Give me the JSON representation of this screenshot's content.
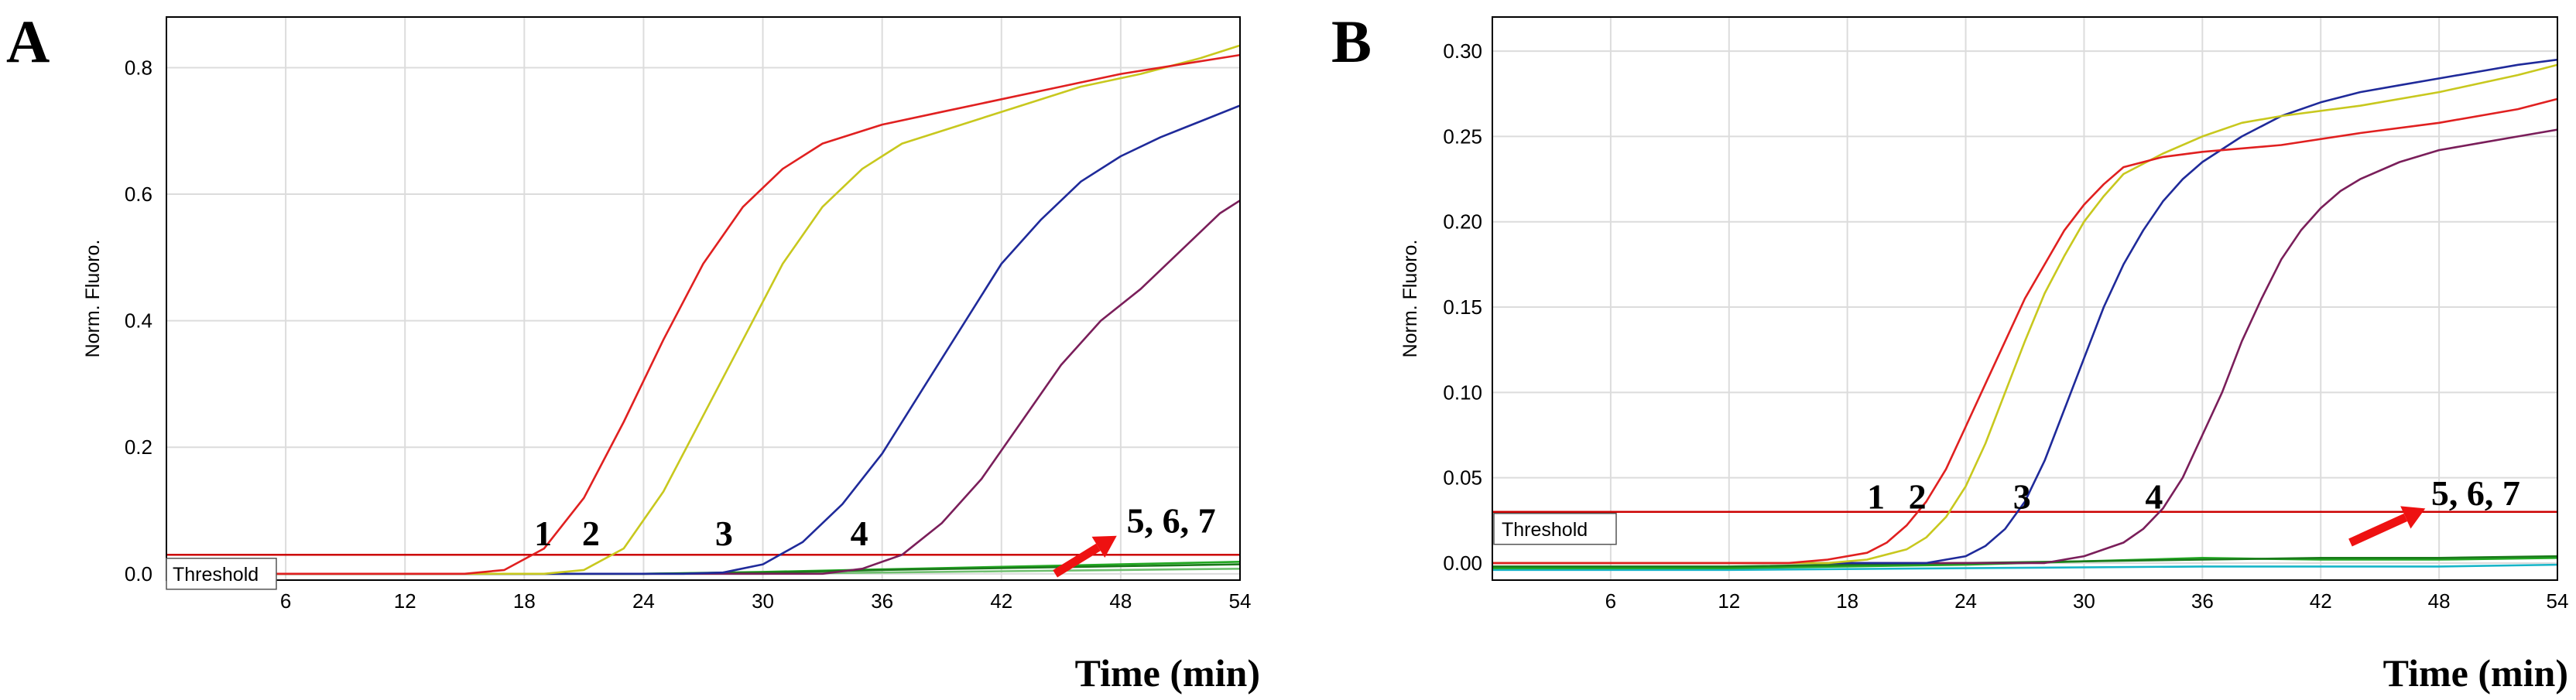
{
  "chart_data": [
    {
      "panel": "A",
      "type": "line",
      "xlabel": "Time (min)",
      "ylabel": "Norm. Fluoro.",
      "xlim": [
        0,
        54
      ],
      "ylim": [
        -0.01,
        0.88
      ],
      "xticks": [
        6,
        12,
        18,
        24,
        30,
        36,
        42,
        48,
        54
      ],
      "xtick_labels": [
        "6",
        "12",
        "18",
        "24",
        "30",
        "36",
        "42",
        "48",
        "54"
      ],
      "yticks": [
        0.0,
        0.2,
        0.4,
        0.6,
        0.8
      ],
      "ytick_labels": [
        "0.0",
        "0.2",
        "0.4",
        "0.6",
        "0.8"
      ],
      "threshold": {
        "value": 0.03,
        "label": "Threshold",
        "color": "#cc0000"
      },
      "series": [
        {
          "name": "1",
          "color": "#e02020",
          "x": [
            0,
            15,
            17,
            19,
            21,
            23,
            25,
            27,
            29,
            31,
            33,
            36,
            39,
            42,
            45,
            48,
            51,
            54
          ],
          "y": [
            0,
            0,
            0.006,
            0.04,
            0.12,
            0.24,
            0.37,
            0.49,
            0.58,
            0.64,
            0.68,
            0.71,
            0.73,
            0.75,
            0.77,
            0.79,
            0.805,
            0.82
          ]
        },
        {
          "name": "2",
          "color": "#c8c81e",
          "x": [
            0,
            19,
            21,
            23,
            25,
            27,
            29,
            31,
            33,
            35,
            37,
            40,
            43,
            46,
            49,
            52,
            54
          ],
          "y": [
            0,
            0,
            0.006,
            0.04,
            0.13,
            0.25,
            0.37,
            0.49,
            0.58,
            0.64,
            0.68,
            0.71,
            0.74,
            0.77,
            0.79,
            0.815,
            0.835
          ]
        },
        {
          "name": "3",
          "color": "#1f2a9a",
          "x": [
            0,
            26,
            28,
            30,
            32,
            34,
            36,
            38,
            40,
            42,
            44,
            46,
            48,
            50,
            52,
            54
          ],
          "y": [
            0,
            0,
            0.002,
            0.015,
            0.05,
            0.11,
            0.19,
            0.29,
            0.39,
            0.49,
            0.56,
            0.62,
            0.66,
            0.69,
            0.715,
            0.74
          ]
        },
        {
          "name": "4",
          "color": "#7a1e5a",
          "x": [
            0,
            33,
            35,
            37,
            39,
            41,
            43,
            45,
            47,
            49,
            51,
            53,
            54
          ],
          "y": [
            0,
            0,
            0.008,
            0.03,
            0.08,
            0.15,
            0.24,
            0.33,
            0.4,
            0.45,
            0.51,
            0.57,
            0.59
          ]
        },
        {
          "name": "5",
          "color": "#1a7a1a",
          "x": [
            0,
            24,
            30,
            36,
            42,
            48,
            54
          ],
          "y": [
            0,
            0,
            0.002,
            0.006,
            0.009,
            0.012,
            0.015
          ]
        },
        {
          "name": "6",
          "color": "#23a823",
          "x": [
            0,
            24,
            30,
            36,
            42,
            48,
            54
          ],
          "y": [
            0,
            0,
            0.003,
            0.007,
            0.011,
            0.015,
            0.019
          ]
        },
        {
          "name": "7",
          "color": "#6fbf6f",
          "x": [
            0,
            30,
            36,
            42,
            48,
            54
          ],
          "y": [
            0,
            0,
            0.002,
            0.004,
            0.006,
            0.008
          ]
        }
      ],
      "annotations": [
        {
          "text": "1",
          "x": 18.5,
          "y": 0.045
        },
        {
          "text": "2",
          "x": 20.9,
          "y": 0.045
        },
        {
          "text": "3",
          "x": 27.6,
          "y": 0.045
        },
        {
          "text": "4",
          "x": 34.4,
          "y": 0.045
        },
        {
          "text": "5, 6, 7",
          "x": 48.3,
          "y": 0.065,
          "arrow_from": [
            44.7,
            0.0
          ],
          "arrow_to": [
            47.8,
            0.06
          ],
          "arrow_color": "#ee1111"
        }
      ]
    },
    {
      "panel": "B",
      "type": "line",
      "xlabel": "Time (min)",
      "ylabel": "Norm. Fluoro.",
      "xlim": [
        0,
        54
      ],
      "ylim": [
        -0.01,
        0.32
      ],
      "xticks": [
        6,
        12,
        18,
        24,
        30,
        36,
        42,
        48,
        54
      ],
      "xtick_labels": [
        "6",
        "12",
        "18",
        "24",
        "30",
        "36",
        "42",
        "48",
        "54"
      ],
      "yticks": [
        0.0,
        0.05,
        0.1,
        0.15,
        0.2,
        0.25,
        0.3
      ],
      "ytick_labels": [
        "0.00",
        "0.05",
        "0.10",
        "0.15",
        "0.20",
        "0.25",
        "0.30"
      ],
      "threshold": {
        "value": 0.03,
        "label": "Threshold",
        "color": "#cc0000"
      },
      "series": [
        {
          "name": "1",
          "color": "#e02020",
          "x": [
            0,
            15,
            17,
            19,
            20,
            21,
            22,
            23,
            24,
            25,
            26,
            27,
            28,
            29,
            30,
            31,
            32,
            34,
            36,
            40,
            44,
            48,
            52,
            54
          ],
          "y": [
            0,
            0,
            0.002,
            0.006,
            0.012,
            0.022,
            0.036,
            0.055,
            0.08,
            0.105,
            0.13,
            0.155,
            0.175,
            0.195,
            0.21,
            0.222,
            0.232,
            0.238,
            0.241,
            0.245,
            0.252,
            0.258,
            0.266,
            0.272
          ]
        },
        {
          "name": "2",
          "color": "#c8c81e",
          "x": [
            0,
            17,
            19,
            21,
            22,
            23,
            24,
            25,
            26,
            27,
            28,
            29,
            30,
            31,
            32,
            34,
            36,
            38,
            40,
            44,
            48,
            52,
            54
          ],
          "y": [
            0,
            0,
            0.002,
            0.008,
            0.015,
            0.027,
            0.045,
            0.07,
            0.1,
            0.13,
            0.158,
            0.18,
            0.2,
            0.215,
            0.228,
            0.24,
            0.25,
            0.258,
            0.262,
            0.268,
            0.276,
            0.286,
            0.292
          ]
        },
        {
          "name": "3",
          "color": "#1f2a9a",
          "x": [
            0,
            22,
            24,
            25,
            26,
            27,
            28,
            29,
            30,
            31,
            32,
            33,
            34,
            35,
            36,
            38,
            40,
            42,
            44,
            46,
            48,
            50,
            52,
            54
          ],
          "y": [
            0,
            0,
            0.004,
            0.01,
            0.02,
            0.036,
            0.06,
            0.09,
            0.12,
            0.15,
            0.175,
            0.195,
            0.212,
            0.225,
            0.235,
            0.25,
            0.262,
            0.27,
            0.276,
            0.28,
            0.284,
            0.288,
            0.292,
            0.295
          ]
        },
        {
          "name": "4",
          "color": "#7a1e5a",
          "x": [
            0,
            28,
            30,
            32,
            33,
            34,
            35,
            36,
            37,
            38,
            39,
            40,
            41,
            42,
            43,
            44,
            46,
            48,
            50,
            52,
            54
          ],
          "y": [
            0,
            0,
            0.004,
            0.012,
            0.02,
            0.032,
            0.05,
            0.075,
            0.1,
            0.13,
            0.155,
            0.178,
            0.195,
            0.208,
            0.218,
            0.225,
            0.235,
            0.242,
            0.246,
            0.25,
            0.254
          ]
        },
        {
          "name": "5",
          "color": "#1a7a1a",
          "x": [
            0,
            12,
            24,
            30,
            36,
            42,
            48,
            54
          ],
          "y": [
            -0.002,
            -0.002,
            0,
            0.001,
            0.002,
            0.003,
            0.003,
            0.004
          ]
        },
        {
          "name": "6",
          "color": "#23a823",
          "x": [
            0,
            12,
            24,
            30,
            36,
            42,
            48,
            54
          ],
          "y": [
            -0.003,
            -0.003,
            -0.001,
            0.001,
            0.003,
            0.002,
            0.002,
            0.003
          ]
        },
        {
          "name": "7",
          "color": "#17b5c8",
          "x": [
            0,
            12,
            24,
            36,
            48,
            54
          ],
          "y": [
            -0.004,
            -0.004,
            -0.003,
            -0.002,
            -0.002,
            -0.001
          ]
        }
      ],
      "annotations": [
        {
          "text": "1",
          "x": 19.0,
          "y": 0.032
        },
        {
          "text": "2",
          "x": 21.1,
          "y": 0.032
        },
        {
          "text": "3",
          "x": 26.4,
          "y": 0.032
        },
        {
          "text": "4",
          "x": 33.1,
          "y": 0.032
        },
        {
          "text": "5, 6, 7",
          "x": 47.6,
          "y": 0.034,
          "arrow_from": [
            43.5,
            0.012
          ],
          "arrow_to": [
            47.3,
            0.032
          ],
          "arrow_color": "#ee1111"
        }
      ]
    }
  ]
}
